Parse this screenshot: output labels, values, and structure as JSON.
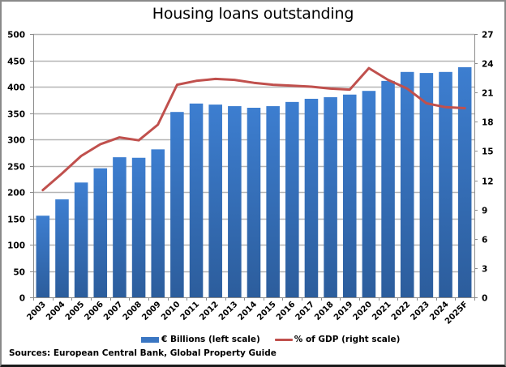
{
  "chart_data": {
    "type": "bar",
    "title": "Housing loans outstanding",
    "categories": [
      "2003",
      "2004",
      "2005",
      "2006",
      "2007",
      "2008",
      "2009",
      "2010",
      "2011",
      "2012",
      "2013",
      "2014",
      "2015",
      "2016",
      "2017",
      "2018",
      "2019",
      "2020",
      "2021",
      "2022",
      "2023",
      "2024",
      "2025F"
    ],
    "series": [
      {
        "name": "€ Billions (left scale)",
        "type": "bar",
        "axis": "left",
        "color": "#3a76c2",
        "values": [
          155,
          186,
          218,
          245,
          266,
          265,
          281,
          352,
          368,
          366,
          363,
          360,
          363,
          371,
          377,
          380,
          385,
          392,
          411,
          428,
          426,
          428,
          437
        ]
      },
      {
        "name": "% of GDP (right scale)",
        "type": "line",
        "axis": "right",
        "color": "#c0504d",
        "values": [
          11.0,
          12.7,
          14.5,
          15.7,
          16.4,
          16.1,
          17.7,
          21.8,
          22.2,
          22.4,
          22.3,
          22.0,
          21.8,
          21.7,
          21.6,
          21.4,
          21.3,
          23.5,
          22.3,
          21.4,
          19.9,
          19.5,
          19.4
        ]
      }
    ],
    "left_axis": {
      "min": 0,
      "max": 500,
      "step": 50,
      "ticks": [
        "0",
        "50",
        "100",
        "150",
        "200",
        "250",
        "300",
        "350",
        "400",
        "450",
        "500"
      ]
    },
    "right_axis": {
      "min": 0,
      "max": 27,
      "step": 3,
      "ticks": [
        "0",
        "3",
        "6",
        "9",
        "12",
        "15",
        "18",
        "21",
        "24",
        "27"
      ]
    },
    "xlabel": "",
    "ylabel_left": "",
    "ylabel_right": "",
    "grid": true,
    "legend_position": "bottom"
  },
  "legend": {
    "bar_label": "€ Billions (left scale)",
    "line_label": "% of GDP (right scale)"
  },
  "source": "Sources: European Central Bank, Global Property Guide"
}
